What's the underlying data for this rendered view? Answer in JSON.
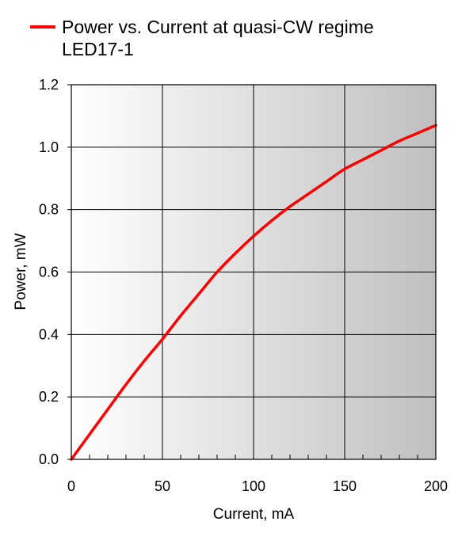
{
  "chart_data": {
    "type": "line",
    "legend": {
      "entry": "Power vs. Current at quasi-CW regime",
      "subtitle": "LED17-1",
      "color": "#ff0000",
      "placement": "top-left"
    },
    "xlabel": "Current, mA",
    "ylabel": "Power, mW",
    "xlim": [
      0,
      200
    ],
    "ylim": [
      0,
      1.2
    ],
    "x_ticks": [
      "0",
      "50",
      "100",
      "150",
      "200"
    ],
    "y_ticks": [
      "0.0",
      "0.2",
      "0.4",
      "0.6",
      "0.8",
      "1.0",
      "1.2"
    ],
    "grid": true,
    "background_gradient": [
      "#ffffff",
      "#c0c0c0"
    ],
    "series": [
      {
        "name": "Power vs. Current at quasi-CW regime",
        "color": "#ff0000",
        "x": [
          0,
          10,
          20,
          30,
          40,
          50,
          60,
          70,
          80,
          90,
          100,
          110,
          120,
          130,
          140,
          150,
          160,
          170,
          180,
          190,
          200
        ],
        "y": [
          0.0,
          0.08,
          0.16,
          0.24,
          0.315,
          0.385,
          0.46,
          0.53,
          0.6,
          0.66,
          0.715,
          0.765,
          0.81,
          0.85,
          0.89,
          0.93,
          0.96,
          0.99,
          1.02,
          1.045,
          1.07
        ]
      }
    ]
  }
}
